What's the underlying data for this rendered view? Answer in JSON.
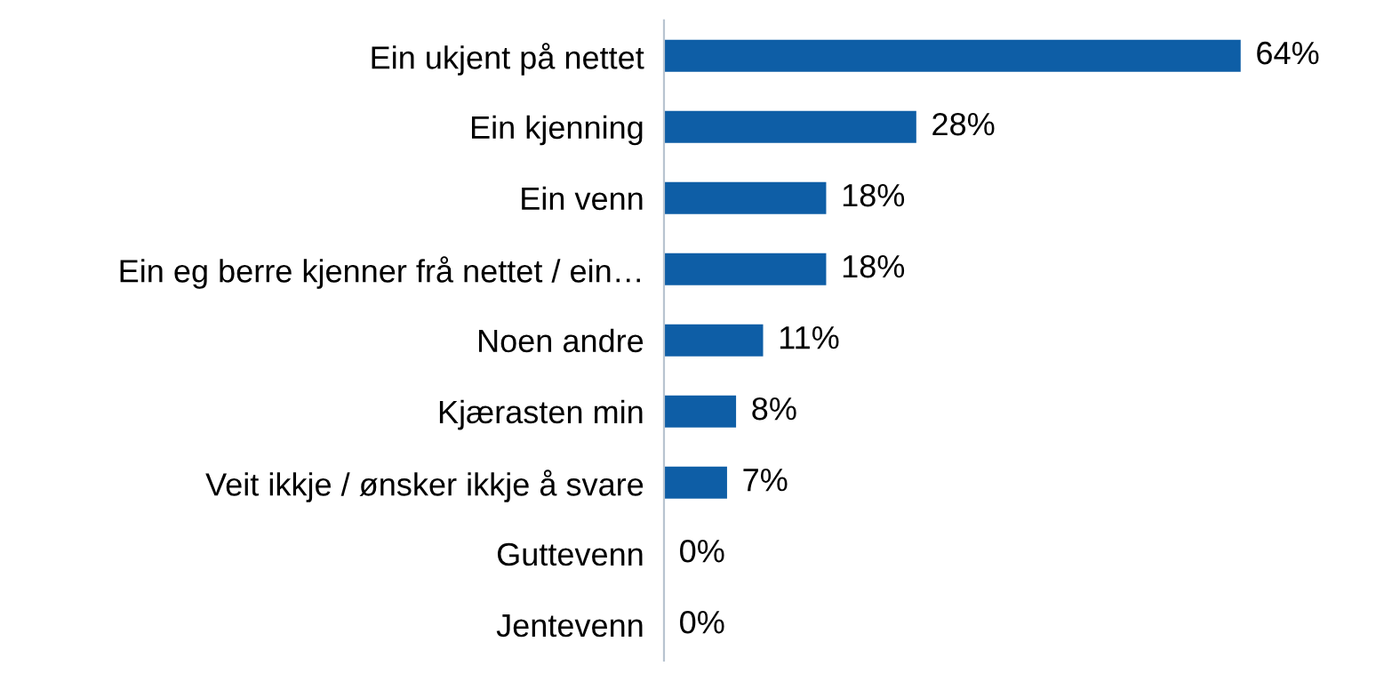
{
  "chart_data": {
    "type": "bar",
    "orientation": "horizontal",
    "categories": [
      "Ein ukjent på nettet",
      "Ein kjenning",
      "Ein venn",
      "Ein eg berre kjenner frå nettet / ein…",
      "Noen andre",
      "Kjærasten min",
      "Veit ikkje / ønsker ikkje å svare",
      "Guttevenn",
      "Jentevenn"
    ],
    "values": [
      64,
      28,
      18,
      18,
      11,
      8,
      7,
      0,
      0
    ],
    "value_labels": [
      "64%",
      "28%",
      "18%",
      "18%",
      "11%",
      "8%",
      "7%",
      "0%",
      "0%"
    ],
    "color": "#0e5ea6",
    "grid": false,
    "legend": false
  }
}
